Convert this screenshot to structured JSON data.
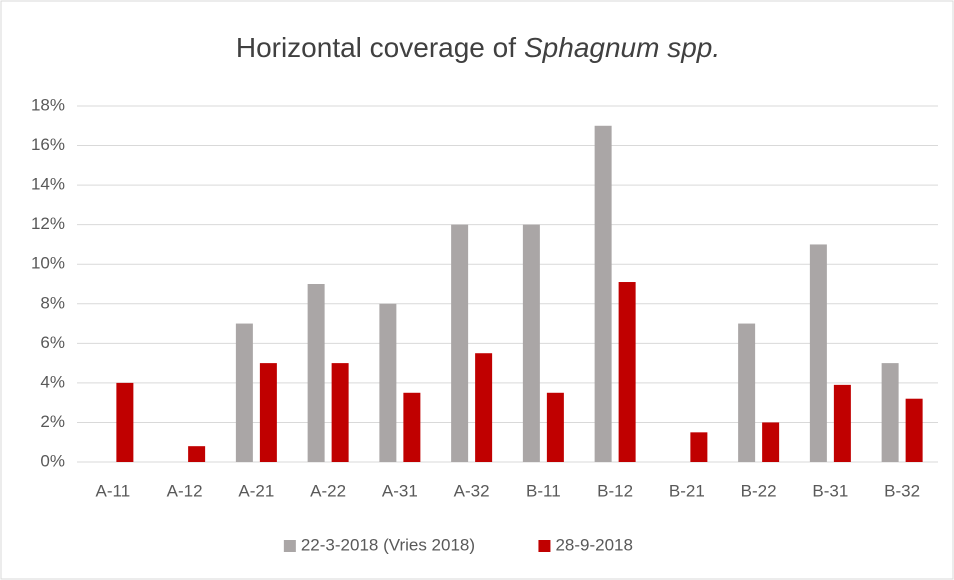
{
  "chart_data": {
    "type": "bar",
    "title": "Horizontal coverage of",
    "title_italic": "Sphagnum spp.",
    "categories": [
      "A-11",
      "A-12",
      "A-21",
      "A-22",
      "A-31",
      "A-32",
      "B-11",
      "B-12",
      "B-21",
      "B-22",
      "B-31",
      "B-32"
    ],
    "series": [
      {
        "name": "22-3-2018 (Vries 2018)",
        "color": "#aaa6a6",
        "values": [
          0,
          0,
          7,
          9,
          8,
          12,
          12,
          17,
          0,
          7,
          11,
          5
        ]
      },
      {
        "name": "28-9-2018",
        "color": "#c00000",
        "values": [
          4,
          0.8,
          5,
          5,
          3.5,
          5.5,
          3.5,
          9.1,
          1.5,
          2,
          3.9,
          3.2
        ]
      }
    ],
    "ylim": [
      0,
      18
    ],
    "yticks": [
      {
        "value": 0,
        "label": "0%"
      },
      {
        "value": 2,
        "label": "2%"
      },
      {
        "value": 4,
        "label": "4%"
      },
      {
        "value": 6,
        "label": "6%"
      },
      {
        "value": 8,
        "label": "8%"
      },
      {
        "value": 10,
        "label": "10%"
      },
      {
        "value": 12,
        "label": "12%"
      },
      {
        "value": 14,
        "label": "14%"
      },
      {
        "value": 16,
        "label": "16%"
      },
      {
        "value": 18,
        "label": "18%"
      }
    ],
    "grid": true,
    "legend": "bottom"
  }
}
